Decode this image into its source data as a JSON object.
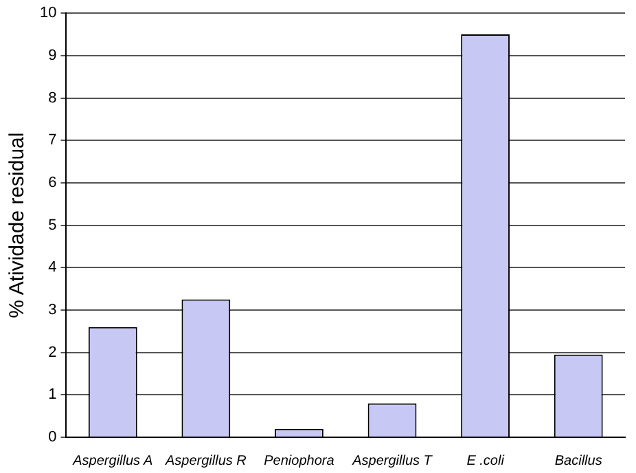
{
  "chart_data": {
    "type": "bar",
    "ylabel": "% Atividade residual",
    "categories": [
      "Aspergillus A",
      "Aspergillus R",
      "Peniophora",
      "Aspergillus T",
      "E .coli",
      "Bacillus"
    ],
    "values": [
      2.6,
      3.25,
      0.2,
      0.8,
      9.5,
      1.95
    ],
    "color": "#c8c8f4",
    "ylim": [
      0,
      10
    ],
    "yticks": [
      0,
      1,
      2,
      3,
      4,
      5,
      6,
      7,
      8,
      9,
      10
    ],
    "grid": "y",
    "legend": false
  }
}
